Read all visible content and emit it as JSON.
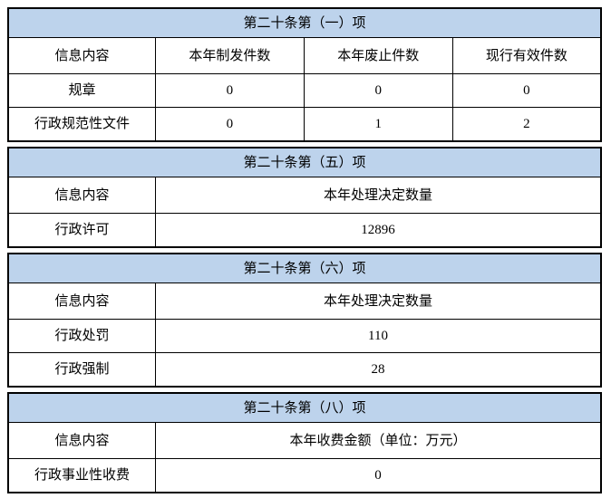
{
  "colors": {
    "band_bg": "#BDD3EC",
    "border": "#000000",
    "text": "#000000"
  },
  "tables": [
    {
      "title": "第二十条第（一）项",
      "columns": [
        "信息内容",
        "本年制发件数",
        "本年废止件数",
        "现行有效件数"
      ],
      "rows": [
        {
          "label": "规章",
          "values": [
            "0",
            "0",
            "0"
          ]
        },
        {
          "label": "行政规范性文件",
          "values": [
            "0",
            "1",
            "2"
          ]
        }
      ]
    },
    {
      "title": "第二十条第（五）项",
      "columns": [
        "信息内容",
        "本年处理决定数量"
      ],
      "rows": [
        {
          "label": "行政许可",
          "values": [
            "12896"
          ]
        }
      ]
    },
    {
      "title": "第二十条第（六）项",
      "columns": [
        "信息内容",
        "本年处理决定数量"
      ],
      "rows": [
        {
          "label": "行政处罚",
          "values": [
            "110"
          ]
        },
        {
          "label": "行政强制",
          "values": [
            "28"
          ]
        }
      ]
    },
    {
      "title": "第二十条第（八）项",
      "columns": [
        "信息内容",
        "本年收费金额（单位：万元）"
      ],
      "rows": [
        {
          "label": "行政事业性收费",
          "values": [
            "0"
          ]
        }
      ]
    }
  ]
}
